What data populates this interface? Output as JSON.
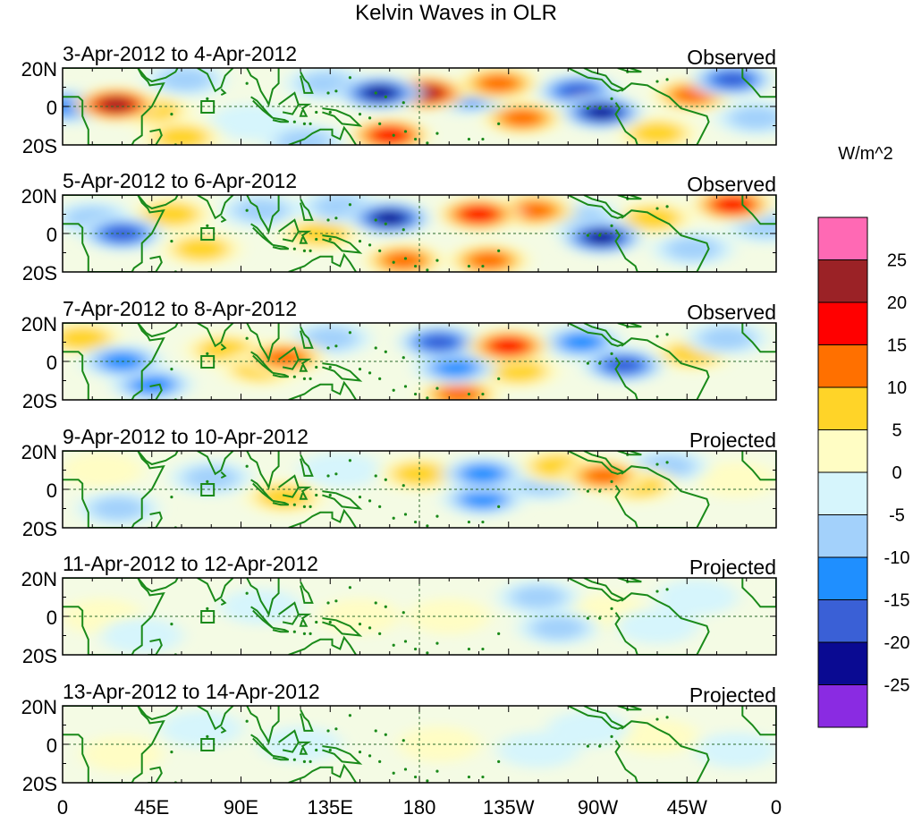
{
  "chart_data": {
    "type": "heatmap",
    "title": "Kelvin Waves in OLR",
    "xlabel": "",
    "ylabel": "",
    "x_ticks": [
      "0",
      "45E",
      "90E",
      "135E",
      "180",
      "135W",
      "90W",
      "45W",
      "0"
    ],
    "y_ticks": [
      "20N",
      "0",
      "20S"
    ],
    "xlim": [
      0,
      360
    ],
    "ylim": [
      -20,
      20
    ],
    "colorbar": {
      "units": "W/m^2",
      "levels": [
        "25",
        "20",
        "15",
        "10",
        "5",
        "0",
        "-5",
        "-10",
        "-15",
        "-20",
        "-25"
      ],
      "colors": [
        "#ff69b4",
        "#9b2226",
        "#ff0000",
        "#ff7000",
        "#ffd428",
        "#fffdc4",
        "#d6f5fc",
        "#a3d1fb",
        "#1f8fff",
        "#3a60d6",
        "#0a0a92",
        "#8a2be2"
      ]
    },
    "panels": [
      {
        "period": "3-Apr-2012 to 4-Apr-2012",
        "label": "Observed",
        "blobs": [
          {
            "lon": 3,
            "lat": 0,
            "v": -14
          },
          {
            "lon": 27,
            "lat": 1,
            "v": 24
          },
          {
            "lon": 45,
            "lat": -2,
            "v": 8
          },
          {
            "lon": 62,
            "lat": 14,
            "v": -8
          },
          {
            "lon": 60,
            "lat": -16,
            "v": 6
          },
          {
            "lon": 95,
            "lat": -8,
            "v": -5
          },
          {
            "lon": 122,
            "lat": -18,
            "v": -8
          },
          {
            "lon": 133,
            "lat": 12,
            "v": -7
          },
          {
            "lon": 160,
            "lat": 7,
            "v": -23
          },
          {
            "lon": 165,
            "lat": -15,
            "v": 16
          },
          {
            "lon": 183,
            "lat": 7,
            "v": 22
          },
          {
            "lon": 205,
            "lat": 5,
            "v": -14
          },
          {
            "lon": 220,
            "lat": 12,
            "v": 14
          },
          {
            "lon": 232,
            "lat": -6,
            "v": 12
          },
          {
            "lon": 260,
            "lat": 8,
            "v": -16
          },
          {
            "lon": 272,
            "lat": -3,
            "v": -22
          },
          {
            "lon": 300,
            "lat": -14,
            "v": 10
          },
          {
            "lon": 318,
            "lat": 6,
            "v": 12
          },
          {
            "lon": 338,
            "lat": 14,
            "v": -18
          },
          {
            "lon": 350,
            "lat": -6,
            "v": -6
          }
        ]
      },
      {
        "period": "5-Apr-2012 to 6-Apr-2012",
        "label": "Observed",
        "blobs": [
          {
            "lon": 15,
            "lat": 8,
            "v": -9
          },
          {
            "lon": 30,
            "lat": 0,
            "v": -20
          },
          {
            "lon": 55,
            "lat": 10,
            "v": 6
          },
          {
            "lon": 70,
            "lat": -8,
            "v": 8
          },
          {
            "lon": 100,
            "lat": 12,
            "v": -8
          },
          {
            "lon": 130,
            "lat": 0,
            "v": 8
          },
          {
            "lon": 140,
            "lat": 14,
            "v": -8
          },
          {
            "lon": 165,
            "lat": 8,
            "v": -24
          },
          {
            "lon": 172,
            "lat": -14,
            "v": 14
          },
          {
            "lon": 210,
            "lat": 10,
            "v": 17
          },
          {
            "lon": 238,
            "lat": 12,
            "v": 15
          },
          {
            "lon": 215,
            "lat": -14,
            "v": 11
          },
          {
            "lon": 262,
            "lat": 8,
            "v": -10
          },
          {
            "lon": 272,
            "lat": -2,
            "v": -24
          },
          {
            "lon": 298,
            "lat": 8,
            "v": 8
          },
          {
            "lon": 318,
            "lat": -8,
            "v": -8
          },
          {
            "lon": 338,
            "lat": 15,
            "v": 18
          },
          {
            "lon": 355,
            "lat": 4,
            "v": -8
          }
        ]
      },
      {
        "period": "7-Apr-2012 to 8-Apr-2012",
        "label": "Observed",
        "blobs": [
          {
            "lon": 10,
            "lat": 12,
            "v": 10
          },
          {
            "lon": 30,
            "lat": 0,
            "v": -12
          },
          {
            "lon": 45,
            "lat": -12,
            "v": -11
          },
          {
            "lon": 82,
            "lat": 6,
            "v": 7
          },
          {
            "lon": 100,
            "lat": -4,
            "v": 9
          },
          {
            "lon": 112,
            "lat": 2,
            "v": 12
          },
          {
            "lon": 135,
            "lat": 12,
            "v": -6
          },
          {
            "lon": 190,
            "lat": 10,
            "v": -16
          },
          {
            "lon": 198,
            "lat": -3,
            "v": -13
          },
          {
            "lon": 200,
            "lat": -17,
            "v": 12
          },
          {
            "lon": 225,
            "lat": 8,
            "v": 17
          },
          {
            "lon": 230,
            "lat": -5,
            "v": 9
          },
          {
            "lon": 262,
            "lat": 10,
            "v": -12
          },
          {
            "lon": 283,
            "lat": -2,
            "v": -20
          },
          {
            "lon": 318,
            "lat": 4,
            "v": 8
          },
          {
            "lon": 335,
            "lat": 12,
            "v": -10
          }
        ]
      },
      {
        "period": "9-Apr-2012 to 10-Apr-2012",
        "label": "Projected",
        "blobs": [
          {
            "lon": 20,
            "lat": 10,
            "v": 5
          },
          {
            "lon": 28,
            "lat": -10,
            "v": -6
          },
          {
            "lon": 75,
            "lat": 6,
            "v": -6
          },
          {
            "lon": 112,
            "lat": -4,
            "v": 9
          },
          {
            "lon": 140,
            "lat": 10,
            "v": -5
          },
          {
            "lon": 180,
            "lat": 8,
            "v": 6
          },
          {
            "lon": 212,
            "lat": 8,
            "v": -12
          },
          {
            "lon": 212,
            "lat": -5,
            "v": -11
          },
          {
            "lon": 242,
            "lat": 3,
            "v": -8
          },
          {
            "lon": 250,
            "lat": 12,
            "v": 8
          },
          {
            "lon": 273,
            "lat": 7,
            "v": 14
          },
          {
            "lon": 290,
            "lat": 2,
            "v": 9
          },
          {
            "lon": 305,
            "lat": 12,
            "v": -7
          },
          {
            "lon": 340,
            "lat": 5,
            "v": 5
          }
        ]
      },
      {
        "period": "11-Apr-2012 to 12-Apr-2012",
        "label": "Projected",
        "blobs": [
          {
            "lon": 20,
            "lat": 0,
            "v": 3
          },
          {
            "lon": 40,
            "lat": -10,
            "v": -4
          },
          {
            "lon": 100,
            "lat": 5,
            "v": -3
          },
          {
            "lon": 150,
            "lat": 0,
            "v": 3
          },
          {
            "lon": 195,
            "lat": 0,
            "v": 3
          },
          {
            "lon": 240,
            "lat": 10,
            "v": -7
          },
          {
            "lon": 250,
            "lat": -6,
            "v": -6
          },
          {
            "lon": 275,
            "lat": 2,
            "v": 3
          },
          {
            "lon": 300,
            "lat": -5,
            "v": -4
          },
          {
            "lon": 320,
            "lat": 10,
            "v": -4
          }
        ]
      },
      {
        "period": "13-Apr-2012 to 14-Apr-2012",
        "label": "Projected",
        "blobs": [
          {
            "lon": 30,
            "lat": -5,
            "v": 3
          },
          {
            "lon": 70,
            "lat": 8,
            "v": -5
          },
          {
            "lon": 120,
            "lat": 0,
            "v": -3
          },
          {
            "lon": 190,
            "lat": 0,
            "v": 3
          },
          {
            "lon": 240,
            "lat": -3,
            "v": -4
          },
          {
            "lon": 265,
            "lat": 8,
            "v": -3
          },
          {
            "lon": 300,
            "lat": 4,
            "v": 2
          },
          {
            "lon": 340,
            "lat": -3,
            "v": -3
          }
        ]
      }
    ]
  }
}
